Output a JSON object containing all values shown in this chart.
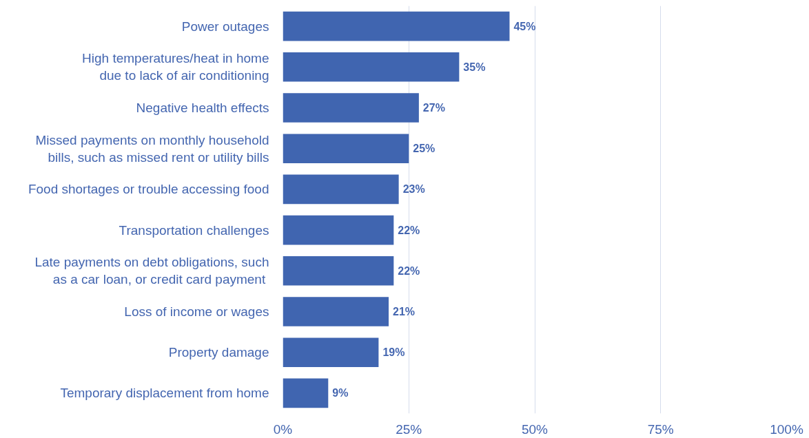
{
  "chart_data": {
    "type": "bar",
    "orientation": "horizontal",
    "categories": [
      "Power outages",
      "High temperatures/heat in home\ndue to lack of air conditioning",
      "Negative health effects",
      "Missed payments on monthly household\nbills, such as missed rent or utility bills",
      "Food shortages or trouble accessing food",
      "Transportation challenges",
      "Late payments on debt obligations, such\nas a car loan, or credit card payment ",
      "Loss of income or wages",
      "Property damage",
      "Temporary displacement from home"
    ],
    "values": [
      45,
      35,
      27,
      25,
      23,
      22,
      22,
      21,
      19,
      9
    ],
    "value_labels": [
      "45%",
      "35%",
      "27%",
      "25%",
      "23%",
      "22%",
      "22%",
      "21%",
      "19%",
      "9%"
    ],
    "color": "#4065b0",
    "xlim": [
      0,
      100
    ],
    "xticks": [
      {
        "value": 0,
        "label": "0%"
      },
      {
        "value": 25,
        "label": "25%"
      },
      {
        "value": 50,
        "label": "50%"
      },
      {
        "value": 75,
        "label": "75%"
      },
      {
        "value": 100,
        "label": "100%"
      }
    ],
    "grid": "x"
  }
}
